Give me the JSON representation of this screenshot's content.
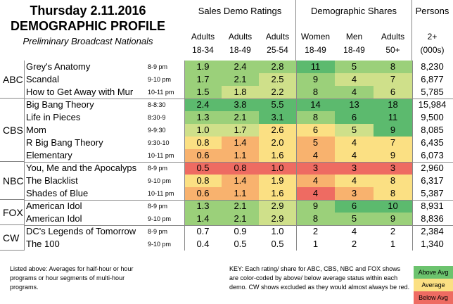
{
  "title": {
    "line1": "Thursday 2.11.2016",
    "line2": "DEMOGRAPHIC PROFILE",
    "line3": "Preliminary Broadcast Nationals"
  },
  "groups": {
    "sales": "Sales Demo Ratings",
    "shares": "Demographic Shares",
    "persons": "Persons"
  },
  "columns": {
    "adults1834": [
      "Adults",
      "18-34"
    ],
    "adults1849": [
      "Adults",
      "18-49"
    ],
    "adults2554": [
      "Adults",
      "25-54"
    ],
    "women1849": [
      "Women",
      "18-49"
    ],
    "men1849": [
      "Men",
      "18-49"
    ],
    "adults50": [
      "Adults",
      "50+"
    ],
    "persons2": [
      "2+",
      "(000s)"
    ]
  },
  "colors": {
    "green_strong": "#5cba6e",
    "green": "#9bd07a",
    "yellow_green": "#cfe08a",
    "yellow": "#fbe083",
    "orange": "#f8b26e",
    "red": "#ee6b62",
    "gray": "#ffffff",
    "above_avg": "#6cc36e",
    "average": "#fbe083",
    "below_avg": "#ee6b62"
  },
  "networks": [
    "ABC",
    "CBS",
    "NBC",
    "FOX",
    "CW"
  ],
  "rows": [
    {
      "show": "Grey's Anatomy",
      "slot": "8-9 pm",
      "r1834": "1.9",
      "r1849": "2.4",
      "r2554": "2.8",
      "w": "11",
      "m": "5",
      "a50": "8",
      "p": "8,230"
    },
    {
      "show": "Scandal",
      "slot": "9-10 pm",
      "r1834": "1.7",
      "r1849": "2.1",
      "r2554": "2.5",
      "w": "9",
      "m": "4",
      "a50": "7",
      "p": "6,877"
    },
    {
      "show": "How to Get Away with Mur",
      "slot": "10-11 pm",
      "r1834": "1.5",
      "r1849": "1.8",
      "r2554": "2.2",
      "w": "8",
      "m": "4",
      "a50": "6",
      "p": "5,785"
    },
    {
      "show": "Big Bang Theory",
      "slot": "8-8:30",
      "r1834": "2.4",
      "r1849": "3.8",
      "r2554": "5.5",
      "w": "14",
      "m": "13",
      "a50": "18",
      "p": "15,984"
    },
    {
      "show": "Life in Pieces",
      "slot": "8:30-9",
      "r1834": "1.3",
      "r1849": "2.1",
      "r2554": "3.1",
      "w": "8",
      "m": "6",
      "a50": "11",
      "p": "9,500"
    },
    {
      "show": "Mom",
      "slot": "9-9:30",
      "r1834": "1.0",
      "r1849": "1.7",
      "r2554": "2.6",
      "w": "6",
      "m": "5",
      "a50": "9",
      "p": "8,085"
    },
    {
      "show": "R Big Bang Theory",
      "slot": "9:30-10",
      "r1834": "0.8",
      "r1849": "1.4",
      "r2554": "2.0",
      "w": "5",
      "m": "4",
      "a50": "7",
      "p": "6,435"
    },
    {
      "show": "Elementary",
      "slot": "10-11 pm",
      "r1834": "0.6",
      "r1849": "1.1",
      "r2554": "1.6",
      "w": "4",
      "m": "4",
      "a50": "9",
      "p": "6,073"
    },
    {
      "show": "You, Me and the Apocalyps",
      "slot": "8-9 pm",
      "r1834": "0.5",
      "r1849": "0.8",
      "r2554": "1.0",
      "w": "3",
      "m": "3",
      "a50": "3",
      "p": "2,960"
    },
    {
      "show": "The Blacklist",
      "slot": "9-10 pm",
      "r1834": "0.8",
      "r1849": "1.4",
      "r2554": "1.9",
      "w": "4",
      "m": "4",
      "a50": "8",
      "p": "6,317"
    },
    {
      "show": "Shades of Blue",
      "slot": "10-11 pm",
      "r1834": "0.6",
      "r1849": "1.1",
      "r2554": "1.6",
      "w": "4",
      "m": "3",
      "a50": "8",
      "p": "5,387"
    },
    {
      "show": "American Idol",
      "slot": "8-9 pm",
      "r1834": "1.3",
      "r1849": "2.1",
      "r2554": "2.9",
      "w": "9",
      "m": "6",
      "a50": "10",
      "p": "8,931"
    },
    {
      "show": "American Idol",
      "slot": "9-10 pm",
      "r1834": "1.4",
      "r1849": "2.1",
      "r2554": "2.9",
      "w": "8",
      "m": "5",
      "a50": "9",
      "p": "8,836"
    },
    {
      "show": "DC's Legends of Tomorrow",
      "slot": "8-9 pm",
      "r1834": "0.7",
      "r1849": "0.9",
      "r2554": "1.0",
      "w": "2",
      "m": "4",
      "a50": "2",
      "p": "2,384"
    },
    {
      "show": "The 100",
      "slot": "9-10 pm",
      "r1834": "0.4",
      "r1849": "0.5",
      "r2554": "0.5",
      "w": "1",
      "m": "2",
      "a50": "1",
      "p": "1,340"
    }
  ],
  "footer": {
    "left": "Listed above: Averages for half-hour or hour programs or hour segments of multi-hour programs.",
    "key": "KEY: Each rating/ share for ABC, CBS, NBC and FOX shows are color-coded by above/ below average status within each demo. CW shows excluded as they would almost always be red."
  },
  "legend": {
    "above": "Above Avg",
    "average": "Average",
    "below": "Below Avg"
  }
}
